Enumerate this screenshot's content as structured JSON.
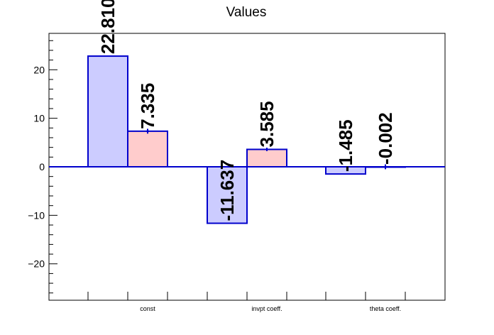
{
  "chart_data": {
    "type": "bar",
    "title": "Values",
    "xlabel": "",
    "ylabel": "",
    "categories": [
      "const",
      "invpt coeff.",
      "theta coeff."
    ],
    "ylim": [
      -27.5,
      27.5
    ],
    "yticks": [
      -20,
      -10,
      0,
      10,
      20
    ],
    "grid": false,
    "legend": "none",
    "series": [
      {
        "values": [
          22.81,
          -11.637,
          -1.485
        ],
        "labels": [
          "22.810",
          "-11.637",
          "-1.485"
        ],
        "errors": [
          0,
          0,
          0
        ],
        "fill": "#ccccff",
        "stroke": "#0000cc"
      },
      {
        "values": [
          7.335,
          3.585,
          -0.002
        ],
        "labels": [
          "7.335",
          "3.585",
          "-0.002"
        ],
        "errors": [
          0.5,
          0.35,
          0.5
        ],
        "fill": "#ffcccc",
        "stroke": "#0000cc"
      }
    ]
  }
}
